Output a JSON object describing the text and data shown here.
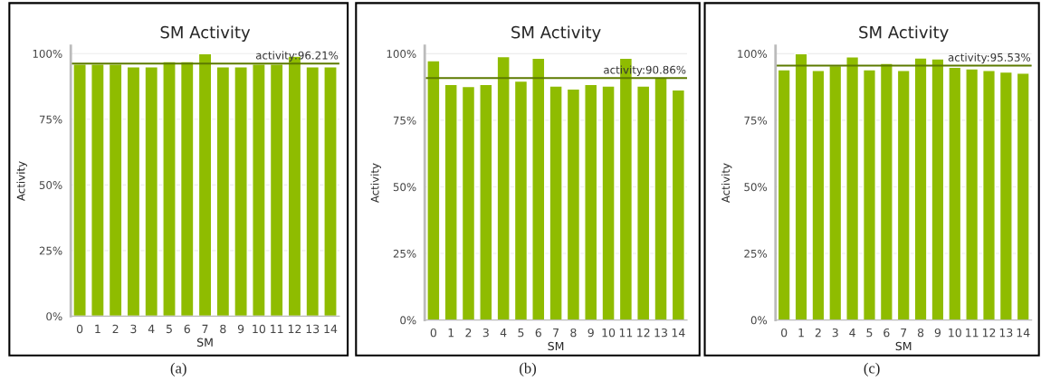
{
  "chart_data": [
    {
      "type": "bar",
      "title": "SM Activity",
      "xlabel": "SM",
      "ylabel": "Activity",
      "categories": [
        "0",
        "1",
        "2",
        "3",
        "4",
        "5",
        "6",
        "7",
        "8",
        "9",
        "10",
        "11",
        "12",
        "13",
        "14"
      ],
      "values": [
        96,
        96,
        96,
        95,
        95,
        97,
        97,
        100,
        95,
        95,
        96,
        96,
        99,
        95,
        95
      ],
      "color": "#8fbc00",
      "ylim": [
        0,
        103
      ],
      "yticks": [
        {
          "value": 0,
          "label": "0%"
        },
        {
          "value": 25,
          "label": "25%"
        },
        {
          "value": 50,
          "label": "50%"
        },
        {
          "value": 75,
          "label": "75%"
        },
        {
          "value": 100,
          "label": "100%"
        }
      ],
      "grid": "y",
      "ref_lines": [
        {
          "axis": "y",
          "value": 96.21,
          "label": "activity:96.21%",
          "color": "#5c7a00"
        }
      ],
      "annotations": [
        "(a)"
      ]
    },
    {
      "type": "bar",
      "title": "SM Activity",
      "xlabel": "SM",
      "ylabel": "Activity",
      "categories": [
        "0",
        "1",
        "2",
        "3",
        "4",
        "5",
        "6",
        "7",
        "8",
        "9",
        "10",
        "11",
        "12",
        "13",
        "14"
      ],
      "values": [
        97.4,
        88.5,
        87.7,
        88.5,
        98.9,
        89.7,
        98.3,
        87.9,
        86.8,
        88.5,
        87.9,
        98.3,
        87.9,
        91,
        86.4
      ],
      "color": "#8fbc00",
      "ylim": [
        0,
        103
      ],
      "yticks": [
        {
          "value": 0,
          "label": "0%"
        },
        {
          "value": 25,
          "label": "25%"
        },
        {
          "value": 50,
          "label": "50%"
        },
        {
          "value": 75,
          "label": "75%"
        },
        {
          "value": 100,
          "label": "100%"
        }
      ],
      "grid": "y",
      "ref_lines": [
        {
          "axis": "y",
          "value": 90.86,
          "label": "activity:90.86%",
          "color": "#5c7a00"
        }
      ],
      "annotations": [
        "(b)"
      ]
    },
    {
      "type": "bar",
      "title": "SM Activity",
      "xlabel": "SM",
      "ylabel": "Activity",
      "categories": [
        "0",
        "1",
        "2",
        "3",
        "4",
        "5",
        "6",
        "7",
        "8",
        "9",
        "10",
        "11",
        "12",
        "13",
        "14"
      ],
      "values": [
        94,
        100,
        93.7,
        95.5,
        98.8,
        94,
        96.4,
        93.7,
        98.4,
        98.1,
        94.9,
        94.3,
        93.7,
        93.1,
        92.7
      ],
      "color": "#8fbc00",
      "ylim": [
        0,
        103
      ],
      "yticks": [
        {
          "value": 0,
          "label": "0%"
        },
        {
          "value": 25,
          "label": "25%"
        },
        {
          "value": 50,
          "label": "50%"
        },
        {
          "value": 75,
          "label": "75%"
        },
        {
          "value": 100,
          "label": "100%"
        }
      ],
      "grid": "y",
      "ref_lines": [
        {
          "axis": "y",
          "value": 95.53,
          "label": "activity:95.53%",
          "color": "#5c7a00"
        }
      ],
      "annotations": [
        "(c)"
      ]
    }
  ]
}
